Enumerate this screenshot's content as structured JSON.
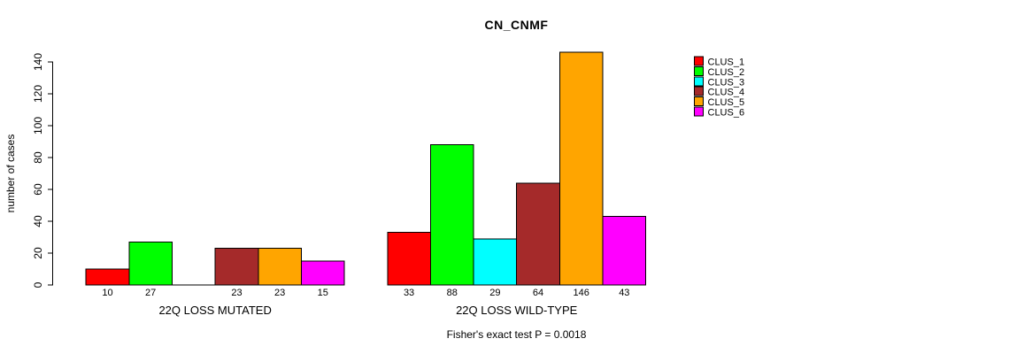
{
  "page": {
    "background": "#FFFFFF"
  },
  "chart_data": {
    "type": "bar",
    "title": "CN_CNMF",
    "ylabel": "number of cases",
    "xlabel": "",
    "ylim": [
      0,
      140
    ],
    "yticks": [
      0,
      20,
      40,
      60,
      80,
      100,
      120,
      140
    ],
    "grid": false,
    "legend_position": "right-inside",
    "bar_border_color": "#000000",
    "series": [
      {
        "name": "CLUS_1",
        "color": "#FF0000"
      },
      {
        "name": "CLUS_2",
        "color": "#00FF00"
      },
      {
        "name": "CLUS_3",
        "color": "#00FFFF"
      },
      {
        "name": "CLUS_4",
        "color": "#A52A2A"
      },
      {
        "name": "CLUS_5",
        "color": "#FFA500"
      },
      {
        "name": "CLUS_6",
        "color": "#FF00FF"
      }
    ],
    "groups": [
      {
        "label": "22Q LOSS MUTATED",
        "values": [
          10,
          27,
          0,
          23,
          23,
          15
        ],
        "value_labels": [
          "10",
          "27",
          "",
          "23",
          "23",
          "15"
        ]
      },
      {
        "label": "22Q LOSS WILD-TYPE",
        "values": [
          33,
          88,
          29,
          64,
          146,
          43
        ],
        "value_labels": [
          "33",
          "88",
          "29",
          "64",
          "146",
          "43"
        ]
      }
    ],
    "footnote": "Fisher's exact test P = 0.0018"
  }
}
